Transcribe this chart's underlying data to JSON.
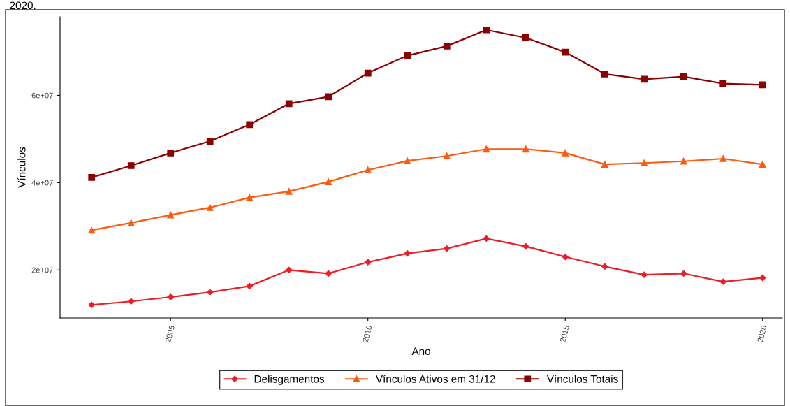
{
  "chart_data": {
    "type": "line",
    "xlabel": "Ano",
    "ylabel": "Vínculos",
    "annotations": [
      "2020."
    ],
    "x": [
      2003,
      2004,
      2005,
      2006,
      2007,
      2008,
      2009,
      2010,
      2011,
      2012,
      2013,
      2014,
      2015,
      2016,
      2017,
      2018,
      2019,
      2020
    ],
    "series": [
      {
        "name": "Delisgamentos",
        "color": "#ee1c25",
        "marker": "diamond",
        "values": [
          12000000.0,
          12800000.0,
          13800000.0,
          14900000.0,
          16300000.0,
          20000000.0,
          19200000.0,
          21800000.0,
          23800000.0,
          24900000.0,
          27200000.0,
          25400000.0,
          23000000.0,
          20800000.0,
          18900000.0,
          19200000.0,
          17300000.0,
          18200000.0
        ]
      },
      {
        "name": "Vínculos Ativos em 31/12",
        "color": "#ff5a10",
        "marker": "triangle",
        "values": [
          29100000.0,
          30800000.0,
          32600000.0,
          34300000.0,
          36600000.0,
          38000000.0,
          40200000.0,
          42900000.0,
          45000000.0,
          46100000.0,
          47700000.0,
          47700000.0,
          46800000.0,
          44200000.0,
          44500000.0,
          44900000.0,
          45500000.0,
          44200000.0
        ]
      },
      {
        "name": "Vínculos Totais",
        "color": "#8b0000",
        "marker": "square",
        "values": [
          41200000.0,
          43900000.0,
          46800000.0,
          49500000.0,
          53300000.0,
          58100000.0,
          59700000.0,
          65100000.0,
          69100000.0,
          71300000.0,
          75000000.0,
          73200000.0,
          69900000.0,
          64900000.0,
          63700000.0,
          64300000.0,
          62700000.0,
          62400000.0
        ]
      }
    ],
    "xlim": [
      2002.2,
      2020.5
    ],
    "ylim": [
      9000000.0,
      78000000.0
    ],
    "xticks": [
      2005,
      2010,
      2015,
      2020
    ],
    "yticks": [
      {
        "value": 20000000.0,
        "label": "2e+07"
      },
      {
        "value": 40000000.0,
        "label": "4e+07"
      },
      {
        "value": 60000000.0,
        "label": "6e+07"
      }
    ],
    "grid": false,
    "legend": "bottom",
    "line_style": "solid"
  }
}
